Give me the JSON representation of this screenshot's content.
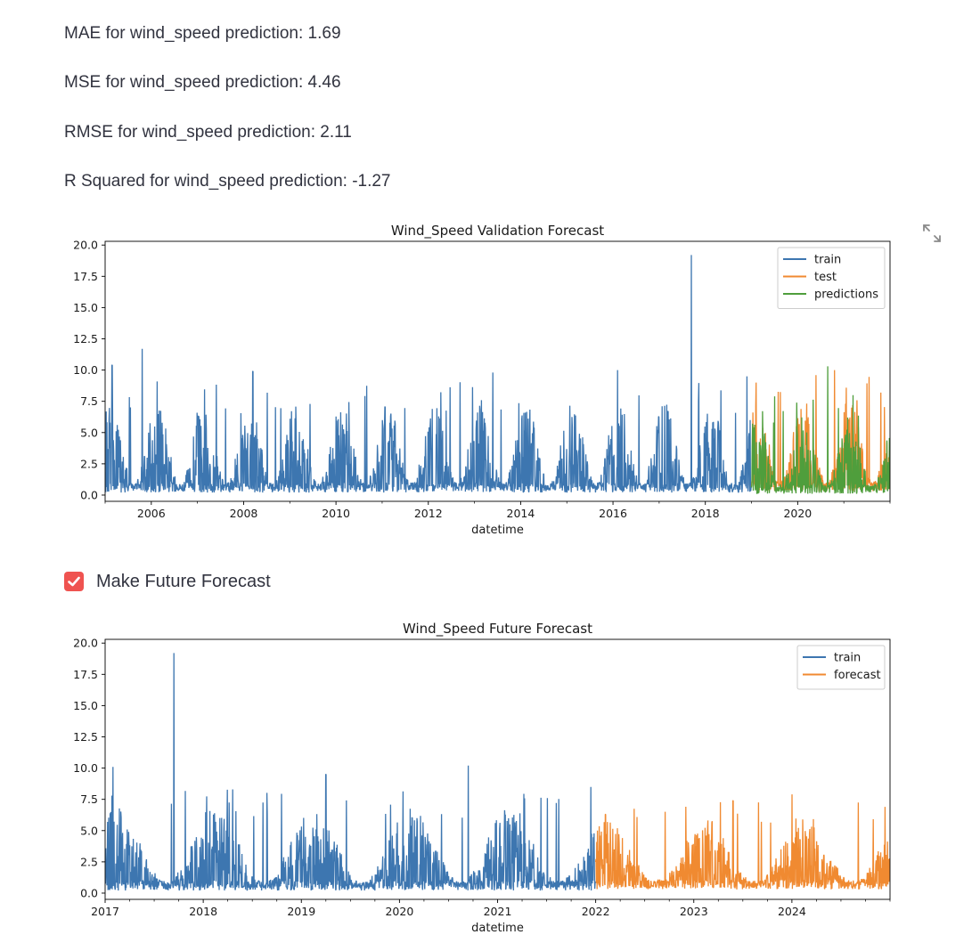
{
  "metrics": [
    "MAE for wind_speed prediction: 1.69",
    "MSE for wind_speed prediction: 4.46",
    "RMSE for wind_speed prediction: 2.11",
    "R Squared for wind_speed prediction: -1.27"
  ],
  "checkbox": {
    "label": "Make Future Forecast",
    "checked": true,
    "color": "#ef5350"
  },
  "colors": {
    "train": "#3d76b0",
    "test": "#f08a31",
    "predictions": "#4f9e3c",
    "forecast": "#f08a31"
  },
  "icons": {
    "expand": "expand-fullscreen-icon",
    "check": "check-icon"
  },
  "chart_data": [
    {
      "type": "line",
      "title": "Wind_Speed Validation Forecast",
      "xlabel": "datetime",
      "ylabel": "",
      "xlim": [
        2005.0,
        2022.0
      ],
      "ylim": [
        -0.5,
        20.3
      ],
      "xticks": [
        2006,
        2008,
        2010,
        2012,
        2014,
        2016,
        2018,
        2020
      ],
      "xtick_labels": [
        "2006",
        "2008",
        "2010",
        "2012",
        "2014",
        "2016",
        "2018",
        "2020"
      ],
      "yticks": [
        0,
        2.5,
        5,
        7.5,
        10,
        12.5,
        15,
        17.5,
        20
      ],
      "ytick_labels": [
        "0.0",
        "2.5",
        "5.0",
        "7.5",
        "10.0",
        "12.5",
        "15.0",
        "17.5",
        "20.0"
      ],
      "legend_position": "top-right",
      "series": [
        {
          "name": "train",
          "x_range": [
            2005.0,
            2019.0
          ],
          "typical_range": [
            0.2,
            6.5
          ],
          "peaks": [
            [
              2005.15,
              10.4
            ],
            [
              2005.8,
              11.7
            ],
            [
              2008.2,
              9.9
            ],
            [
              2013.4,
              9.8
            ],
            [
              2016.1,
              10.0
            ],
            [
              2017.7,
              19.2
            ],
            [
              2018.9,
              9.5
            ]
          ]
        },
        {
          "name": "test",
          "x_range": [
            2019.0,
            2022.0
          ],
          "typical_range": [
            0.3,
            6.8
          ],
          "peaks": [
            [
              2019.1,
              9.0
            ],
            [
              2020.4,
              9.6
            ],
            [
              2020.8,
              10.0
            ],
            [
              2021.8,
              8.2
            ]
          ]
        },
        {
          "name": "predictions",
          "x_range": [
            2019.0,
            2022.0
          ],
          "typical_range": [
            0.1,
            5.5
          ],
          "peaks": [
            [
              2019.5,
              7.9
            ],
            [
              2020.65,
              10.3
            ],
            [
              2021.2,
              8.0
            ]
          ]
        }
      ]
    },
    {
      "type": "line",
      "title": "Wind_Speed Future Forecast",
      "xlabel": "datetime",
      "ylabel": "",
      "xlim": [
        2017.0,
        2025.0
      ],
      "ylim": [
        -0.5,
        20.3
      ],
      "xticks": [
        2017,
        2018,
        2019,
        2020,
        2021,
        2022,
        2023,
        2024
      ],
      "xtick_labels": [
        "2017",
        "2018",
        "2019",
        "2020",
        "2021",
        "2022",
        "2023",
        "2024"
      ],
      "yticks": [
        0,
        2.5,
        5,
        7.5,
        10,
        12.5,
        15,
        17.5,
        20
      ],
      "ytick_labels": [
        "0.0",
        "2.5",
        "5.0",
        "7.5",
        "10.0",
        "12.5",
        "15.0",
        "17.5",
        "20.0"
      ],
      "legend_position": "top-right",
      "series": [
        {
          "name": "train",
          "x_range": [
            2017.0,
            2022.0
          ],
          "typical_range": [
            0.2,
            6.0
          ],
          "peaks": [
            [
              2017.08,
              10.1
            ],
            [
              2017.7,
              19.2
            ],
            [
              2018.3,
              8.3
            ],
            [
              2019.25,
              9.5
            ],
            [
              2020.7,
              10.2
            ],
            [
              2021.95,
              8.5
            ]
          ]
        },
        {
          "name": "forecast",
          "x_range": [
            2022.0,
            2025.0
          ],
          "typical_range": [
            0.3,
            5.2
          ],
          "peaks": [
            [
              2022.1,
              6.3
            ],
            [
              2023.4,
              7.4
            ],
            [
              2024.0,
              7.9
            ],
            [
              2024.95,
              6.9
            ]
          ]
        }
      ]
    }
  ]
}
